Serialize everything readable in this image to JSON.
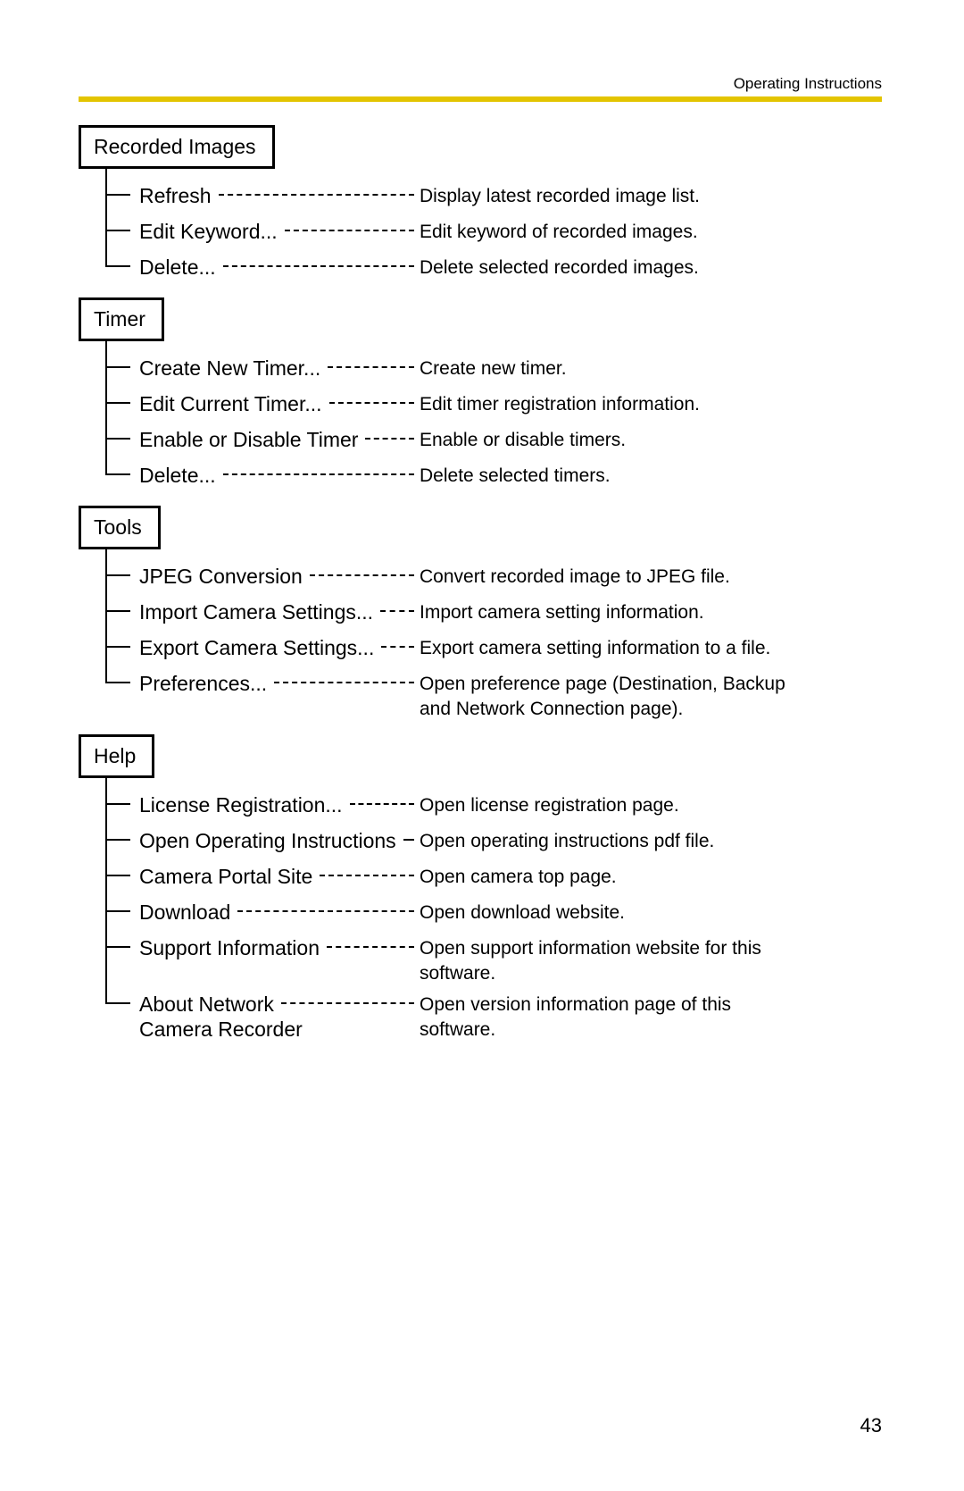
{
  "header": {
    "right": "Operating Instructions"
  },
  "rule_color": "#e3c400",
  "page_number": "43",
  "sections": [
    {
      "title": "Recorded Images",
      "items": [
        {
          "label": "Refresh",
          "desc": "Display latest recorded image list."
        },
        {
          "label": "Edit Keyword...",
          "desc": "Edit keyword of recorded images."
        },
        {
          "label": "Delete...",
          "desc": "Delete selected recorded images."
        }
      ]
    },
    {
      "title": "Timer",
      "items": [
        {
          "label": "Create New Timer...",
          "desc": "Create new timer."
        },
        {
          "label": "Edit Current Timer...",
          "desc": "Edit timer registration information."
        },
        {
          "label": "Enable or Disable Timer",
          "desc": "Enable or disable timers."
        },
        {
          "label": "Delete...",
          "desc": "Delete selected timers."
        }
      ]
    },
    {
      "title": "Tools",
      "items": [
        {
          "label": "JPEG Conversion",
          "desc": "Convert recorded image to JPEG file."
        },
        {
          "label": "Import Camera Settings...",
          "desc": "Import camera setting information."
        },
        {
          "label": "Export Camera Settings...",
          "desc": "Export camera setting information to a file."
        },
        {
          "label": "Preferences...",
          "desc": "Open preference page (Destination, Backup and Network Connection page)."
        }
      ]
    },
    {
      "title": "Help",
      "items": [
        {
          "label": "License Registration...",
          "desc": "Open license registration page."
        },
        {
          "label": "Open Operating Instructions",
          "desc": "Open operating instructions pdf file."
        },
        {
          "label": "Camera Portal Site",
          "desc": "Open camera top page."
        },
        {
          "label": "Download",
          "desc": "Open download website."
        },
        {
          "label": "Support Information",
          "desc": "Open support information website for this software."
        },
        {
          "label": "About Network\nCamera Recorder",
          "desc": "Open version information page of this software."
        }
      ]
    }
  ]
}
